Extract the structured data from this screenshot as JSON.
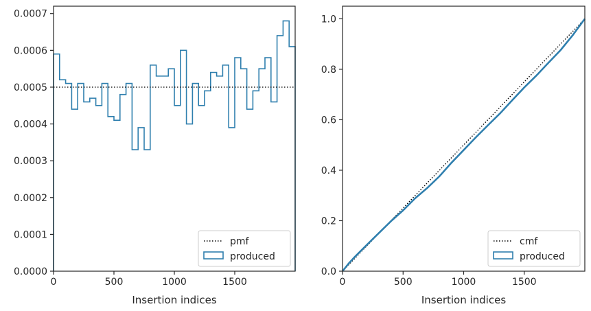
{
  "chart_data": [
    {
      "type": "step-histogram",
      "xlabel": "Insertion indices",
      "ylabel": "",
      "xlim": [
        0,
        2000
      ],
      "ylim": [
        0,
        0.00072
      ],
      "xticks": [
        0,
        500,
        1000,
        1500
      ],
      "xtick_labels": [
        "0",
        "500",
        "1000",
        "1500"
      ],
      "yticks": [
        0,
        0.0001,
        0.0002,
        0.0003,
        0.0004,
        0.0005,
        0.0006,
        0.0007
      ],
      "ytick_labels": [
        "0.0000",
        "0.0001",
        "0.0002",
        "0.0003",
        "0.0004",
        "0.0005",
        "0.0006",
        "0.0007"
      ],
      "grid": false,
      "legend_position": "lower-right",
      "reference": {
        "name": "pmf",
        "value": 0.0005,
        "color": "#000000",
        "style": "dotted"
      },
      "series": [
        {
          "name": "produced",
          "color": "#2f7fae",
          "bin_edges": [
            0,
            50,
            100,
            150,
            200,
            250,
            300,
            350,
            400,
            450,
            500,
            550,
            600,
            650,
            700,
            750,
            800,
            850,
            900,
            950,
            1000,
            1050,
            1100,
            1150,
            1200,
            1250,
            1300,
            1350,
            1400,
            1450,
            1500,
            1550,
            1600,
            1650,
            1700,
            1750,
            1800,
            1850,
            1900,
            1950,
            2000
          ],
          "values": [
            0.00059,
            0.00052,
            0.00051,
            0.00044,
            0.00051,
            0.00046,
            0.00047,
            0.00045,
            0.00051,
            0.00042,
            0.00041,
            0.00048,
            0.00051,
            0.00033,
            0.00039,
            0.00033,
            0.00056,
            0.00053,
            0.00053,
            0.00055,
            0.00045,
            0.0006,
            0.0004,
            0.00051,
            0.00045,
            0.00049,
            0.00054,
            0.00053,
            0.00056,
            0.00039,
            0.00058,
            0.00055,
            0.00044,
            0.00049,
            0.00055,
            0.00058,
            0.00046,
            0.00064,
            0.00068,
            0.00061
          ]
        }
      ]
    },
    {
      "type": "line",
      "xlabel": "Insertion indices",
      "ylabel": "",
      "xlim": [
        0,
        2000
      ],
      "ylim": [
        0,
        1.05
      ],
      "xticks": [
        0,
        500,
        1000,
        1500
      ],
      "xtick_labels": [
        "0",
        "500",
        "1000",
        "1500"
      ],
      "yticks": [
        0,
        0.2,
        0.4,
        0.6,
        0.8,
        1.0
      ],
      "ytick_labels": [
        "0.0",
        "0.2",
        "0.4",
        "0.6",
        "0.8",
        "1.0"
      ],
      "grid": false,
      "legend_position": "lower-right",
      "reference": {
        "name": "cmf",
        "x": [
          0,
          2000
        ],
        "y": [
          0,
          1.0
        ],
        "color": "#000000",
        "style": "dotted"
      },
      "series": [
        {
          "name": "produced",
          "color": "#2f7fae",
          "x": [
            0,
            50,
            100,
            200,
            300,
            400,
            500,
            600,
            700,
            800,
            900,
            1000,
            1100,
            1200,
            1300,
            1400,
            1500,
            1600,
            1700,
            1800,
            1900,
            2000
          ],
          "y": [
            0,
            0.03,
            0.056,
            0.104,
            0.151,
            0.198,
            0.241,
            0.289,
            0.33,
            0.376,
            0.43,
            0.48,
            0.53,
            0.578,
            0.625,
            0.677,
            0.728,
            0.775,
            0.826,
            0.876,
            0.935,
            1.0
          ]
        }
      ]
    }
  ]
}
